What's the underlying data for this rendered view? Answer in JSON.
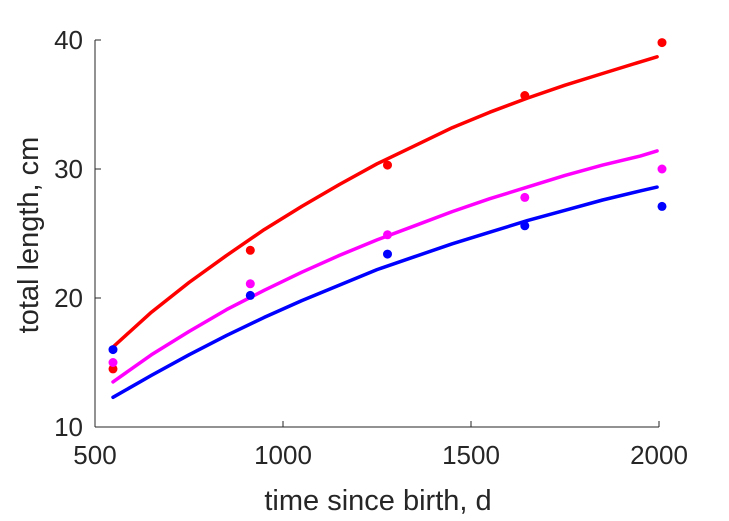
{
  "chart_data": {
    "type": "scatter",
    "title": "",
    "xlabel": "time since birth, d",
    "ylabel": "total length, cm",
    "xlim": [
      500,
      2000
    ],
    "ylim": [
      10,
      40
    ],
    "xticks": [
      500,
      1000,
      1500,
      2000
    ],
    "yticks": [
      10,
      20,
      30,
      40
    ],
    "grid": false,
    "legend": "none",
    "series": [
      {
        "color": "#ff0000",
        "points": {
          "x": [
            548,
            913,
            1278,
            1643,
            2008
          ],
          "y": [
            14.5,
            23.7,
            30.3,
            35.7,
            39.8
          ]
        },
        "fit": {
          "x": [
            548,
            650,
            750,
            850,
            950,
            1050,
            1150,
            1250,
            1350,
            1450,
            1550,
            1650,
            1750,
            1850,
            1950,
            1995
          ],
          "y": [
            16.2,
            18.9,
            21.2,
            23.3,
            25.3,
            27.1,
            28.8,
            30.4,
            31.8,
            33.2,
            34.4,
            35.5,
            36.5,
            37.4,
            38.3,
            38.7
          ]
        }
      },
      {
        "color": "#ff00ff",
        "points": {
          "x": [
            548,
            913,
            1278,
            1643,
            2008
          ],
          "y": [
            15.0,
            21.1,
            24.9,
            27.8,
            30.0
          ]
        },
        "fit": {
          "x": [
            548,
            650,
            750,
            850,
            950,
            1050,
            1150,
            1250,
            1350,
            1450,
            1550,
            1650,
            1750,
            1850,
            1950,
            1995
          ],
          "y": [
            13.5,
            15.6,
            17.4,
            19.1,
            20.6,
            22.0,
            23.3,
            24.5,
            25.6,
            26.7,
            27.7,
            28.6,
            29.5,
            30.3,
            31.0,
            31.4
          ]
        }
      },
      {
        "color": "#0000ff",
        "points": {
          "x": [
            548,
            913,
            1278,
            1643,
            2008
          ],
          "y": [
            16.0,
            20.2,
            23.4,
            25.6,
            27.1
          ]
        },
        "fit": {
          "x": [
            548,
            650,
            750,
            850,
            950,
            1050,
            1150,
            1250,
            1350,
            1450,
            1550,
            1650,
            1750,
            1850,
            1950,
            1995
          ],
          "y": [
            12.3,
            14.0,
            15.6,
            17.1,
            18.5,
            19.8,
            21.0,
            22.2,
            23.2,
            24.2,
            25.1,
            26.0,
            26.8,
            27.6,
            28.3,
            28.6
          ]
        }
      }
    ]
  }
}
